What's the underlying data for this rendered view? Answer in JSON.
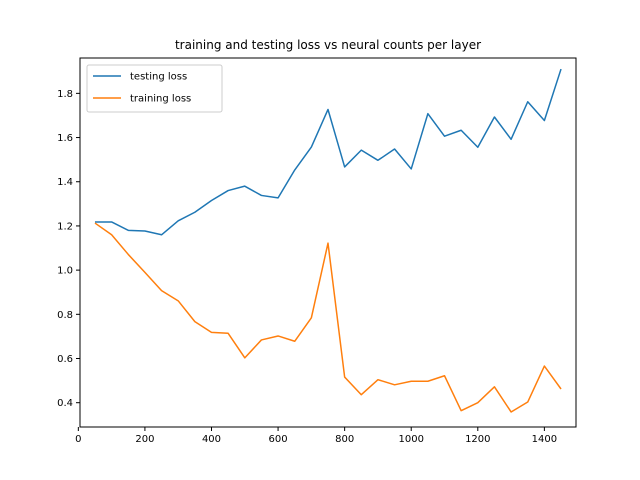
{
  "chart_data": {
    "type": "line",
    "title": "training and testing loss vs neural counts per layer",
    "xlabel": "",
    "ylabel": "",
    "xlim": [
      5,
      1495
    ],
    "ylim": [
      0.29,
      1.96
    ],
    "xticks": [
      0,
      200,
      400,
      600,
      800,
      1000,
      1200,
      1400
    ],
    "xtick_labels": [
      "0",
      "200",
      "400",
      "600",
      "800",
      "1000",
      "1200",
      "1400"
    ],
    "yticks": [
      0.4,
      0.6,
      0.8,
      1.0,
      1.2,
      1.4,
      1.6,
      1.8
    ],
    "ytick_labels": [
      "0.4",
      "0.6",
      "0.8",
      "1.0",
      "1.2",
      "1.4",
      "1.6",
      "1.8"
    ],
    "grid": false,
    "legend_position": "top-left",
    "x": [
      50,
      100,
      150,
      200,
      250,
      300,
      350,
      400,
      450,
      500,
      550,
      600,
      650,
      700,
      750,
      800,
      850,
      900,
      950,
      1000,
      1050,
      1100,
      1150,
      1200,
      1250,
      1300,
      1350,
      1400,
      1450
    ],
    "series": [
      {
        "name": "testing loss",
        "color": "#1f77b4",
        "values": [
          1.218,
          1.218,
          1.18,
          1.177,
          1.16,
          1.223,
          1.262,
          1.315,
          1.36,
          1.38,
          1.338,
          1.327,
          1.453,
          1.557,
          1.727,
          1.467,
          1.543,
          1.497,
          1.548,
          1.458,
          1.708,
          1.606,
          1.633,
          1.556,
          1.693,
          1.592,
          1.762,
          1.677,
          1.91
        ]
      },
      {
        "name": "training loss",
        "color": "#ff7f0e",
        "values": [
          1.213,
          1.16,
          1.071,
          0.99,
          0.907,
          0.861,
          0.767,
          0.718,
          0.714,
          0.603,
          0.684,
          0.702,
          0.678,
          0.784,
          1.122,
          0.516,
          0.436,
          0.504,
          0.481,
          0.497,
          0.497,
          0.522,
          0.364,
          0.4,
          0.472,
          0.358,
          0.403,
          0.566,
          0.462
        ]
      }
    ]
  }
}
